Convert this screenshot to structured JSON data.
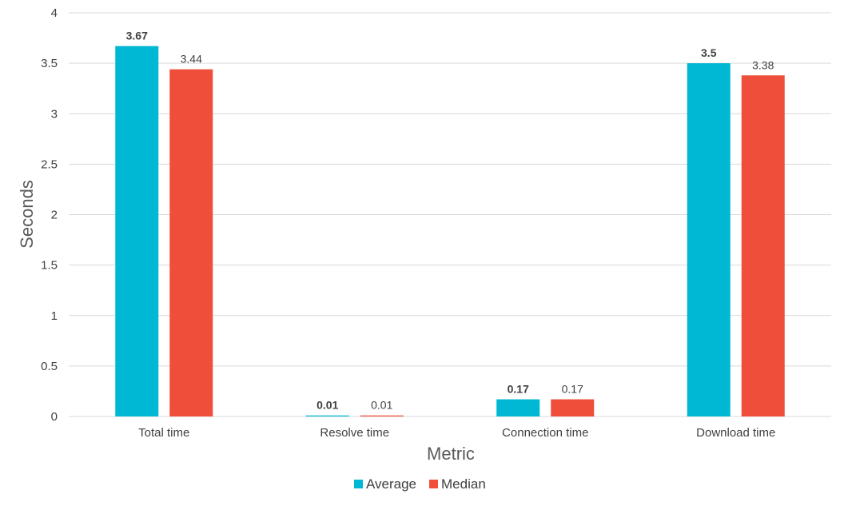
{
  "chart_data": {
    "type": "bar",
    "title": "",
    "xlabel": "Metric",
    "ylabel": "Seconds",
    "ylim": [
      0,
      4
    ],
    "yticks": [
      0,
      0.5,
      1,
      1.5,
      2,
      2.5,
      3,
      3.5,
      4
    ],
    "grid": true,
    "legend": "bottom-center",
    "categories": [
      "Total time",
      "Resolve time",
      "Connection time",
      "Download time"
    ],
    "series": [
      {
        "name": "Average",
        "color": "#00B8D4",
        "values": [
          3.67,
          0.01,
          0.17,
          3.5
        ],
        "labels": [
          "3.67",
          "0.01",
          "0.17",
          "3.5"
        ]
      },
      {
        "name": "Median",
        "color": "#EF4E3A",
        "values": [
          3.44,
          0.01,
          0.17,
          3.38
        ],
        "labels": [
          "3.44",
          "0.01",
          "0.17",
          "3.38"
        ]
      }
    ]
  },
  "colors": {
    "gridline": "#D9D9D9",
    "text": "#404040"
  }
}
